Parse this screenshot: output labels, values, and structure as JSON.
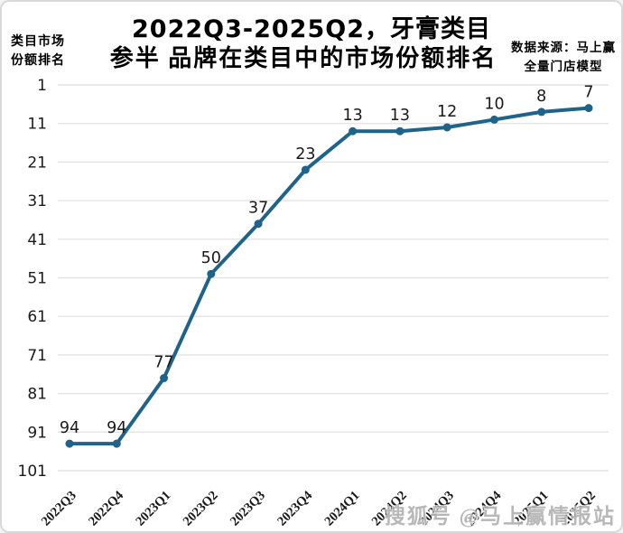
{
  "header": {
    "title_line1": "2022Q3-2025Q2，牙膏类目",
    "title_line2": "参半 品牌在类目中的市场份额排名",
    "axis_corner_label_line1": "类目市场",
    "axis_corner_label_line2": "份额排名",
    "source_note_line1": "数据来源：马上赢",
    "source_note_line2": "全量门店模型"
  },
  "watermark": "搜狐号 @马上赢情报站",
  "chart_data": {
    "type": "line",
    "title": "2022Q3-2025Q2，牙膏类目 参半 品牌在类目中的市场份额排名",
    "ylabel": "类目市场份额排名",
    "x": [
      "2022Q3",
      "2022Q4",
      "2023Q1",
      "2023Q2",
      "2023Q3",
      "2023Q4",
      "2024Q1",
      "2024Q2",
      "2024Q3",
      "2024Q4",
      "2025Q1",
      "2025Q2"
    ],
    "series": [
      {
        "name": "参半 类目市场份额排名",
        "values": [
          94,
          94,
          77,
          50,
          37,
          23,
          13,
          13,
          12,
          10,
          8,
          7
        ]
      }
    ],
    "y_ticks": [
      1,
      11,
      21,
      31,
      41,
      51,
      61,
      71,
      81,
      91,
      101
    ],
    "ylim": [
      1,
      101
    ],
    "y_inverted": true,
    "grid": "horizontal",
    "data_labels": true,
    "legend": "none",
    "colors": {
      "line": "#20638a",
      "marker": "#20638a",
      "grid": "#e4e4e4",
      "tick_text": "#1a1a1a",
      "label_text": "#1a1a1a"
    }
  }
}
